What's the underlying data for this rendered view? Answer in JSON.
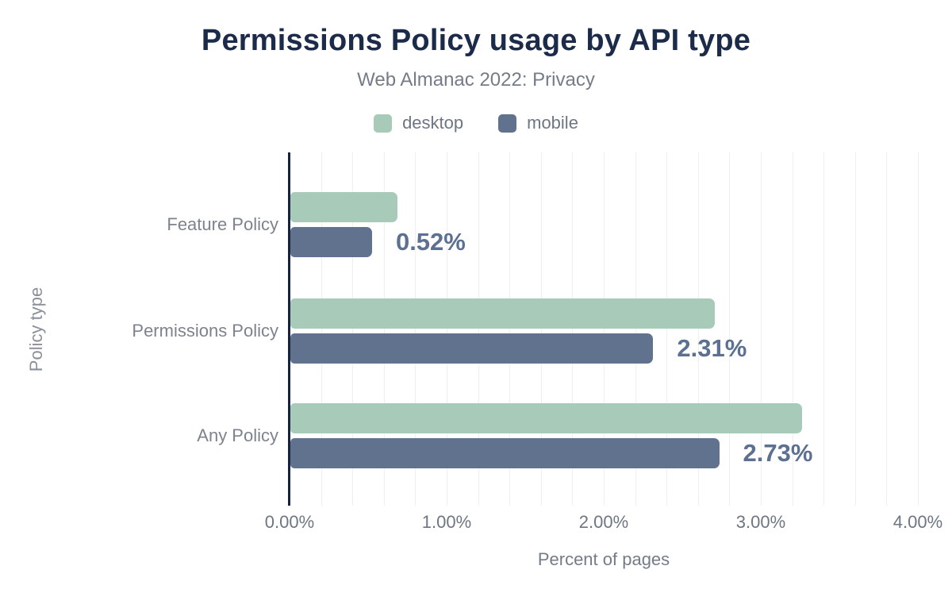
{
  "header": {
    "title": "Permissions Policy usage by API type",
    "subtitle": "Web Almanac 2022: Privacy"
  },
  "legend": {
    "items": [
      {
        "label": "desktop",
        "color": "#a7cab9"
      },
      {
        "label": "mobile",
        "color": "#60728d"
      }
    ]
  },
  "chart_data": {
    "type": "bar",
    "orientation": "horizontal",
    "title": "Permissions Policy usage by API type",
    "subtitle": "Web Almanac 2022: Privacy",
    "categories": [
      "Feature Policy",
      "Permissions Policy",
      "Any Policy"
    ],
    "series": [
      {
        "name": "desktop",
        "color": "#a7cab9",
        "values": [
          0.68,
          2.7,
          3.26
        ]
      },
      {
        "name": "mobile",
        "color": "#60728d",
        "values": [
          0.52,
          2.31,
          2.73
        ]
      }
    ],
    "data_labels": {
      "labeled_series": "mobile",
      "values": [
        "0.52%",
        "2.31%",
        "2.73%"
      ]
    },
    "xlabel": "Percent of pages",
    "ylabel": "Policy type",
    "xlim": [
      0,
      4
    ],
    "x_tick_values": [
      0,
      1,
      2,
      3,
      4
    ],
    "x_tick_labels": [
      "0.00%",
      "1.00%",
      "2.00%",
      "3.00%",
      "4.00%"
    ],
    "minor_grid_step": 0.2,
    "grid": true,
    "legend_position": "top"
  },
  "style": {
    "title_color": "#1c2b4a",
    "text_color": "#6e7683",
    "grid_color": "#edeff3",
    "axis_color": "#16233f",
    "data_label_color": "#5c7191",
    "background": "#ffffff"
  }
}
